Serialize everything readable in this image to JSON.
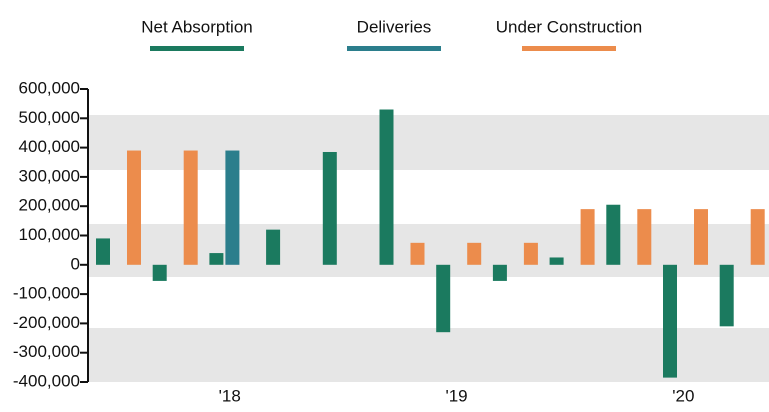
{
  "chart_data": {
    "type": "bar",
    "categories": [
      null,
      null,
      "'18",
      null,
      null,
      null,
      "'19",
      null,
      null,
      null,
      "'20",
      null
    ],
    "series": [
      {
        "name": "Net Absorption",
        "color": "#1b7a5f",
        "values": [
          90000,
          -55000,
          40000,
          120000,
          385000,
          530000,
          -230000,
          -55000,
          25000,
          205000,
          -385000,
          -210000
        ]
      },
      {
        "name": "Deliveries",
        "color": "#2b7e8c",
        "values": [
          null,
          null,
          390000,
          null,
          null,
          null,
          null,
          null,
          null,
          null,
          null,
          null
        ]
      },
      {
        "name": "Under Construction",
        "color": "#ec8c4c",
        "values": [
          390000,
          390000,
          null,
          null,
          null,
          75000,
          75000,
          75000,
          190000,
          190000,
          190000,
          190000
        ]
      }
    ],
    "ylim": [
      -400000,
      600000
    ],
    "yticks": [
      {
        "value": 600000,
        "label": "600,000"
      },
      {
        "value": 500000,
        "label": "500,000"
      },
      {
        "value": 400000,
        "label": "400,000"
      },
      {
        "value": 300000,
        "label": "300,000"
      },
      {
        "value": 200000,
        "label": "200,000"
      },
      {
        "value": 100000,
        "label": "100,000"
      },
      0,
      {
        "value": -100000,
        "label": "-100,000"
      },
      {
        "value": -200000,
        "label": "-200,000"
      },
      {
        "value": -300000,
        "label": "-300,000"
      },
      {
        "value": -400000,
        "label": "-400,000"
      }
    ]
  }
}
